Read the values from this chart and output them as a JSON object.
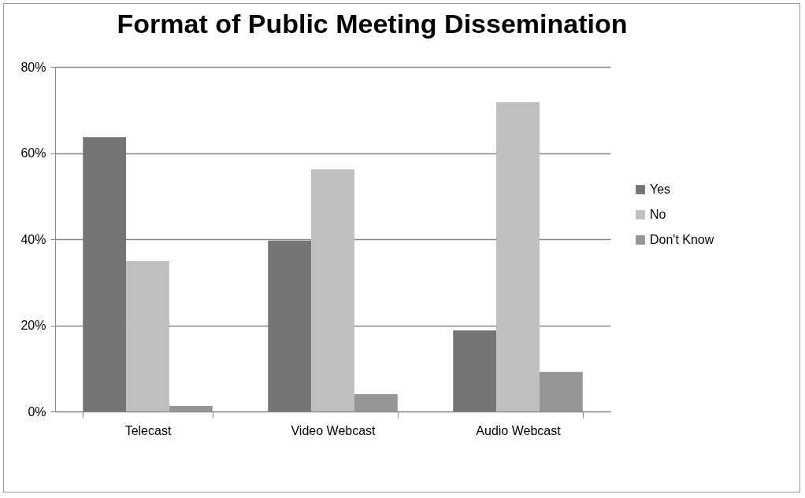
{
  "chart_data": {
    "type": "bar",
    "title": "Format of Public Meeting Dissemination",
    "categories": [
      "Telecast",
      "Video Webcast",
      "Audio Webcast"
    ],
    "series": [
      {
        "name": "Yes",
        "color": "#757575",
        "values": [
          63.7,
          39.7,
          18.8
        ]
      },
      {
        "name": "No",
        "color": "#bfbfbf",
        "values": [
          34.9,
          56.2,
          71.8
        ]
      },
      {
        "name": "Don't Know",
        "color": "#969696",
        "values": [
          1.3,
          4.0,
          9.2
        ]
      }
    ],
    "ylim": [
      0,
      80
    ],
    "yticks": [
      {
        "value": 0,
        "label": "0%"
      },
      {
        "value": 20,
        "label": "20%"
      },
      {
        "value": 40,
        "label": "40%"
      },
      {
        "value": 60,
        "label": "60%"
      },
      {
        "value": 80,
        "label": "80%"
      }
    ],
    "grid": "y",
    "legend": "right"
  }
}
